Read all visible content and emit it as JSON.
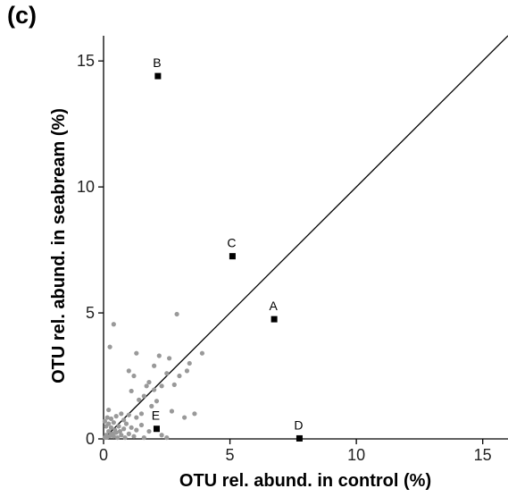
{
  "panel_label": "(c)",
  "chart_data": {
    "type": "scatter",
    "title": "",
    "xlabel": "OTU rel. abund. in control (%)",
    "ylabel": "OTU rel. abund. in seabream (%)",
    "xlim": [
      0,
      16
    ],
    "ylim": [
      0,
      16
    ],
    "xticks": [
      0,
      5,
      10,
      15
    ],
    "yticks": [
      0,
      5,
      10,
      15
    ],
    "grid": false,
    "reference_line": "y = x",
    "colors": {
      "highlight": "#000000",
      "background": "#999999",
      "line": "#000000"
    },
    "labeled_points": [
      {
        "label": "A",
        "x": 6.75,
        "y": 4.75
      },
      {
        "label": "B",
        "x": 2.15,
        "y": 14.4
      },
      {
        "label": "C",
        "x": 5.1,
        "y": 7.25
      },
      {
        "label": "D",
        "x": 7.75,
        "y": 0.02
      },
      {
        "label": "E",
        "x": 2.1,
        "y": 0.4
      }
    ],
    "other_points": [
      {
        "x": 0.05,
        "y": 0.05
      },
      {
        "x": 0.1,
        "y": 0.15
      },
      {
        "x": 0.15,
        "y": 0.08
      },
      {
        "x": 0.2,
        "y": 0.3
      },
      {
        "x": 0.25,
        "y": 0.12
      },
      {
        "x": 0.3,
        "y": 0.45
      },
      {
        "x": 0.35,
        "y": 0.2
      },
      {
        "x": 0.4,
        "y": 0.1
      },
      {
        "x": 0.45,
        "y": 0.35
      },
      {
        "x": 0.5,
        "y": 0.25
      },
      {
        "x": 0.55,
        "y": 0.05
      },
      {
        "x": 0.6,
        "y": 0.5
      },
      {
        "x": 0.65,
        "y": 0.3
      },
      {
        "x": 0.7,
        "y": 0.15
      },
      {
        "x": 0.8,
        "y": 0.4
      },
      {
        "x": 0.85,
        "y": 0.05
      },
      {
        "x": 0.9,
        "y": 0.6
      },
      {
        "x": 1.0,
        "y": 0.2
      },
      {
        "x": 1.1,
        "y": 0.45
      },
      {
        "x": 1.2,
        "y": 0.1
      },
      {
        "x": 1.3,
        "y": 0.35
      },
      {
        "x": 1.5,
        "y": 0.55
      },
      {
        "x": 1.6,
        "y": 0.05
      },
      {
        "x": 1.8,
        "y": 0.3
      },
      {
        "x": 2.3,
        "y": 0.15
      },
      {
        "x": 2.5,
        "y": 0.05
      },
      {
        "x": 0.1,
        "y": 0.5
      },
      {
        "x": 0.05,
        "y": 0.7
      },
      {
        "x": 0.15,
        "y": 0.85
      },
      {
        "x": 0.2,
        "y": 0.6
      },
      {
        "x": 0.3,
        "y": 0.8
      },
      {
        "x": 0.4,
        "y": 0.65
      },
      {
        "x": 0.5,
        "y": 0.9
      },
      {
        "x": 0.7,
        "y": 1.0
      },
      {
        "x": 0.8,
        "y": 0.75
      },
      {
        "x": 1.0,
        "y": 0.95
      },
      {
        "x": 1.3,
        "y": 0.85
      },
      {
        "x": 1.5,
        "y": 1.0
      },
      {
        "x": 0.2,
        "y": 1.15
      },
      {
        "x": 0.4,
        "y": 4.55
      },
      {
        "x": 0.25,
        "y": 3.65
      },
      {
        "x": 1.0,
        "y": 2.7
      },
      {
        "x": 1.3,
        "y": 3.4
      },
      {
        "x": 1.1,
        "y": 1.9
      },
      {
        "x": 1.4,
        "y": 1.55
      },
      {
        "x": 1.6,
        "y": 1.7
      },
      {
        "x": 1.8,
        "y": 2.25
      },
      {
        "x": 1.9,
        "y": 1.3
      },
      {
        "x": 2.0,
        "y": 1.95
      },
      {
        "x": 2.1,
        "y": 1.5
      },
      {
        "x": 2.2,
        "y": 3.3
      },
      {
        "x": 2.3,
        "y": 2.1
      },
      {
        "x": 2.5,
        "y": 2.6
      },
      {
        "x": 2.6,
        "y": 3.2
      },
      {
        "x": 2.7,
        "y": 1.1
      },
      {
        "x": 2.8,
        "y": 2.15
      },
      {
        "x": 2.9,
        "y": 4.95
      },
      {
        "x": 3.0,
        "y": 2.5
      },
      {
        "x": 3.2,
        "y": 0.85
      },
      {
        "x": 3.3,
        "y": 2.7
      },
      {
        "x": 3.6,
        "y": 1.0
      },
      {
        "x": 3.4,
        "y": 3.0
      },
      {
        "x": 3.9,
        "y": 3.4
      },
      {
        "x": 2.0,
        "y": 2.9
      },
      {
        "x": 1.2,
        "y": 2.5
      },
      {
        "x": 1.7,
        "y": 2.1
      }
    ]
  }
}
